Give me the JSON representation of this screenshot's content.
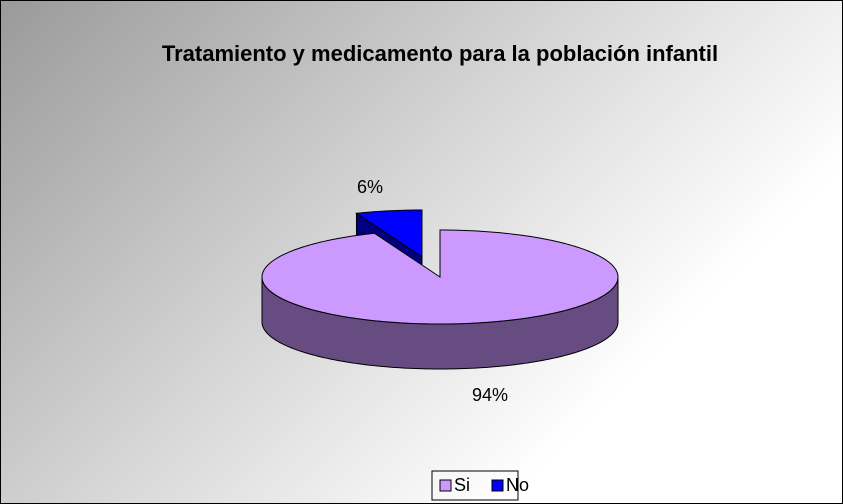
{
  "chart_data": {
    "type": "pie3d",
    "title": "Tratamiento y medicamento para la población infantil",
    "categories": [
      "Si",
      "No"
    ],
    "values": [
      94,
      6
    ],
    "value_labels": [
      "94%",
      "6%"
    ],
    "colors": [
      "#cc99ff",
      "#0000ff"
    ],
    "side_colors": [
      "#664c80",
      "#000080"
    ],
    "legend": "bottom"
  }
}
